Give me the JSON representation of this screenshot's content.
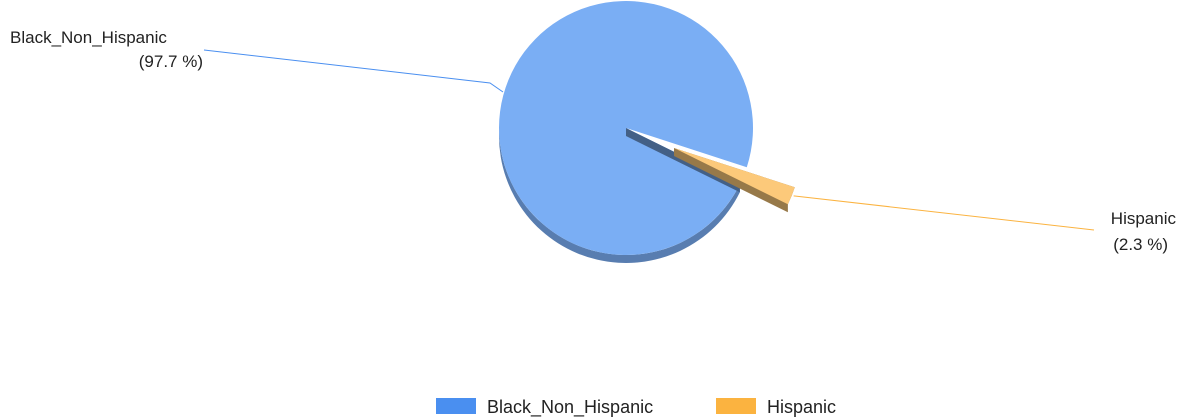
{
  "chart_data": {
    "type": "pie",
    "style": "3d-exploded",
    "categories": [
      "Black_Non_Hispanic",
      "Hispanic"
    ],
    "values": [
      97.7,
      2.3
    ],
    "value_labels": [
      "(97.7 %)",
      "(2.3 %)"
    ],
    "colors": [
      "#7aaef4",
      "#fcc97a"
    ],
    "legend_colors": [
      "#4a8ff0",
      "#fbb340"
    ],
    "legend": {
      "position": "bottom",
      "entries": [
        "Black_Non_Hispanic",
        "Hispanic"
      ]
    },
    "exploded_slice": "Hispanic"
  }
}
